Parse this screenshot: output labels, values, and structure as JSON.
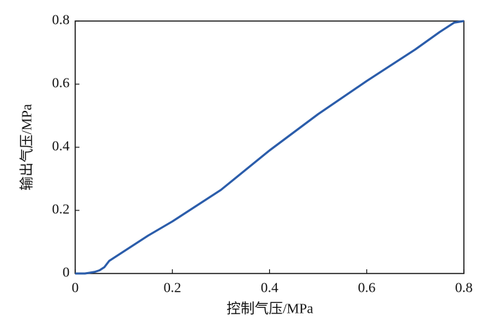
{
  "chart_data": {
    "type": "line",
    "x_label": "控制气压/MPa",
    "y_label": "输出气压/MPa",
    "xlim": [
      0,
      0.8
    ],
    "ylim": [
      0,
      0.8
    ],
    "xticks": [
      0,
      0.2,
      0.4,
      0.6,
      0.8
    ],
    "yticks": [
      0,
      0.2,
      0.4,
      0.6,
      0.8
    ],
    "x": [
      0,
      0.02,
      0.04,
      0.05,
      0.06,
      0.07,
      0.1,
      0.15,
      0.2,
      0.3,
      0.4,
      0.5,
      0.6,
      0.7,
      0.75,
      0.77,
      0.78,
      0.8
    ],
    "series": [
      {
        "color": "#2a5caa",
        "values": [
          0,
          0,
          0.005,
          0.01,
          0.02,
          0.04,
          0.07,
          0.12,
          0.165,
          0.265,
          0.39,
          0.505,
          0.61,
          0.71,
          0.765,
          0.785,
          0.795,
          0.8
        ]
      }
    ]
  }
}
